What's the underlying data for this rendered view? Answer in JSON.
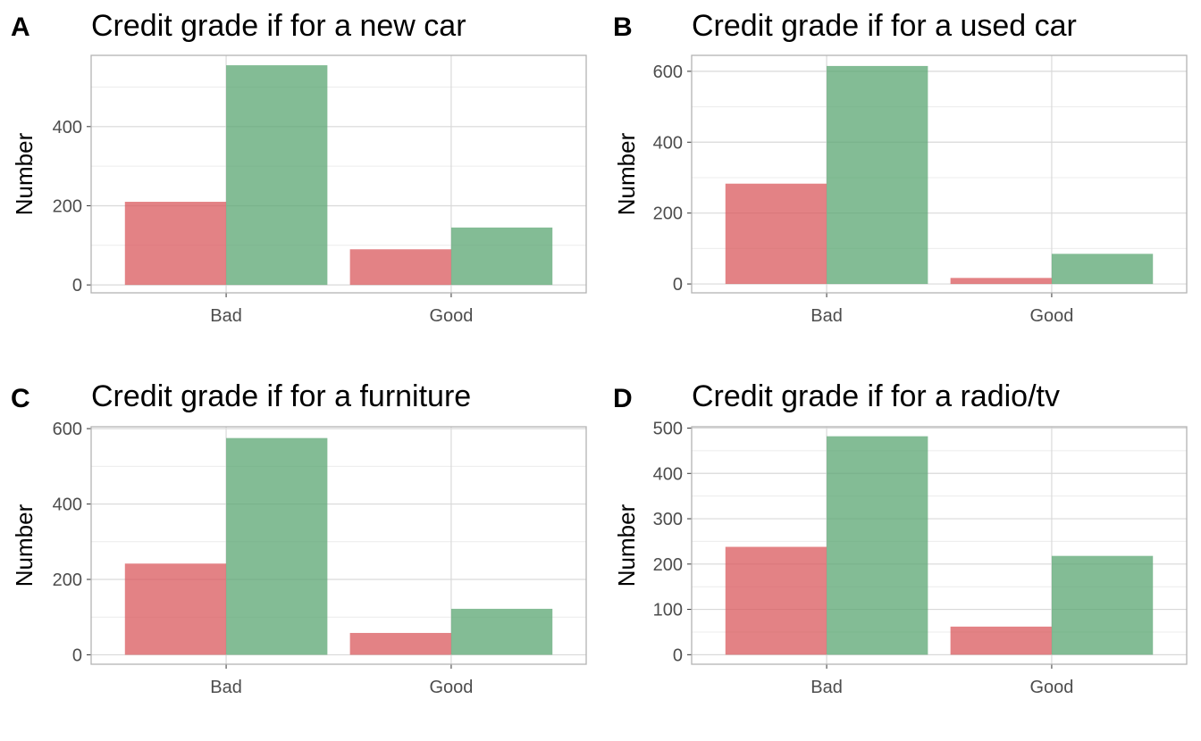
{
  "colors": {
    "bad_fill": "#d9585c",
    "good_fill": "#5aa571",
    "grid_major": "#d9d9d9",
    "grid_minor": "#ececec",
    "border": "#b3b3b3"
  },
  "chart_data": [
    {
      "panel": "A",
      "type": "bar",
      "title": "Credit grade if for a new car",
      "xlabel": "",
      "ylabel": "Number",
      "categories": [
        "Bad",
        "Good"
      ],
      "series": [
        {
          "values": [
            210,
            90
          ]
        },
        {
          "values": [
            555,
            145
          ]
        }
      ],
      "yticks": [
        0,
        200,
        400
      ],
      "ylim": [
        -20,
        580
      ],
      "grid": true,
      "legend": "none"
    },
    {
      "panel": "B",
      "type": "bar",
      "title": "Credit grade if for a used car",
      "xlabel": "",
      "ylabel": "Number",
      "categories": [
        "Bad",
        "Good"
      ],
      "series": [
        {
          "values": [
            283,
            17
          ]
        },
        {
          "values": [
            615,
            85
          ]
        }
      ],
      "yticks": [
        0,
        200,
        400,
        600
      ],
      "ylim": [
        -25,
        645
      ],
      "grid": true,
      "legend": "none"
    },
    {
      "panel": "C",
      "type": "bar",
      "title": "Credit grade if for a furniture",
      "xlabel": "",
      "ylabel": "Number",
      "categories": [
        "Bad",
        "Good"
      ],
      "series": [
        {
          "values": [
            242,
            58
          ]
        },
        {
          "values": [
            575,
            122
          ]
        }
      ],
      "yticks": [
        0,
        200,
        400,
        600
      ],
      "ylim": [
        -25,
        605
      ],
      "grid": true,
      "legend": "none"
    },
    {
      "panel": "D",
      "type": "bar",
      "title": "Credit grade if for a radio/tv",
      "xlabel": "",
      "ylabel": "Number",
      "categories": [
        "Bad",
        "Good"
      ],
      "series": [
        {
          "values": [
            238,
            62
          ]
        },
        {
          "values": [
            482,
            218
          ]
        }
      ],
      "yticks": [
        0,
        100,
        200,
        300,
        400,
        500
      ],
      "ylim": [
        -21,
        503
      ],
      "grid": true,
      "legend": "none"
    }
  ]
}
